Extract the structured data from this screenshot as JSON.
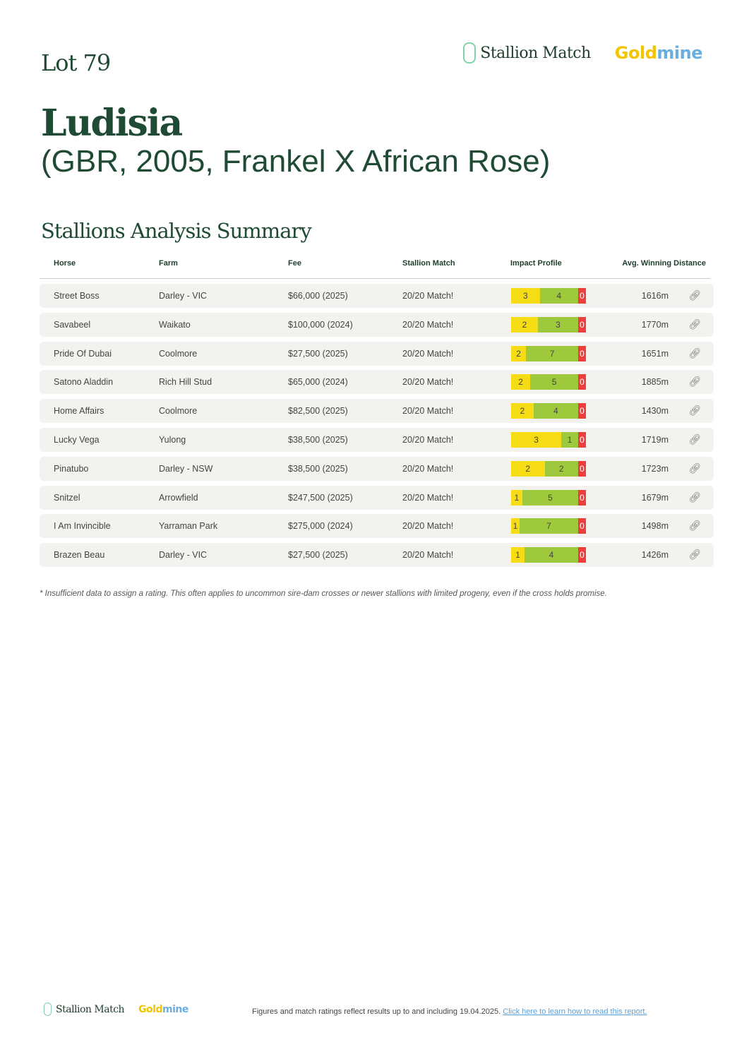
{
  "header": {
    "lot": "Lot 79",
    "logo_stallion": "Stallion Match",
    "logo_gold": "Gold",
    "logo_mine": "mine"
  },
  "horse": {
    "name": "Ludisia",
    "details": "(GBR, 2005, Frankel X African Rose)"
  },
  "section_title": "Stallions Analysis Summary",
  "columns": [
    "Horse",
    "Farm",
    "Fee",
    "Stallion Match",
    "Impact Profile",
    "Avg. Winning Distance"
  ],
  "colors": {
    "yellow": "#f5dc14",
    "green": "#9fc93c",
    "red": "#ee3d3d",
    "brand": "#1f4a33"
  },
  "rows": [
    {
      "horse": "Street Boss",
      "farm": "Darley - VIC",
      "fee": "$66,000 (2025)",
      "match": "20/20 Match!",
      "impact": [
        3,
        4,
        0
      ],
      "distance": "1616m"
    },
    {
      "horse": "Savabeel",
      "farm": "Waikato",
      "fee": "$100,000 (2024)",
      "match": "20/20 Match!",
      "impact": [
        2,
        3,
        0
      ],
      "distance": "1770m"
    },
    {
      "horse": "Pride Of Dubai",
      "farm": "Coolmore",
      "fee": "$27,500 (2025)",
      "match": "20/20 Match!",
      "impact": [
        2,
        7,
        0
      ],
      "distance": "1651m"
    },
    {
      "horse": "Satono Aladdin",
      "farm": "Rich Hill Stud",
      "fee": "$65,000 (2024)",
      "match": "20/20 Match!",
      "impact": [
        2,
        5,
        0
      ],
      "distance": "1885m"
    },
    {
      "horse": "Home Affairs",
      "farm": "Coolmore",
      "fee": "$82,500 (2025)",
      "match": "20/20 Match!",
      "impact": [
        2,
        4,
        0
      ],
      "distance": "1430m"
    },
    {
      "horse": "Lucky Vega",
      "farm": "Yulong",
      "fee": "$38,500 (2025)",
      "match": "20/20 Match!",
      "impact": [
        3,
        1,
        0
      ],
      "distance": "1719m"
    },
    {
      "horse": "Pinatubo",
      "farm": "Darley - NSW",
      "fee": "$38,500 (2025)",
      "match": "20/20 Match!",
      "impact": [
        2,
        2,
        0
      ],
      "distance": "1723m"
    },
    {
      "horse": "Snitzel",
      "farm": "Arrowfield",
      "fee": "$247,500 (2025)",
      "match": "20/20 Match!",
      "impact": [
        1,
        5,
        0
      ],
      "distance": "1679m"
    },
    {
      "horse": "I Am Invincible",
      "farm": "Yarraman Park",
      "fee": "$275,000 (2024)",
      "match": "20/20 Match!",
      "impact": [
        1,
        7,
        0
      ],
      "distance": "1498m"
    },
    {
      "horse": "Brazen Beau",
      "farm": "Darley - VIC",
      "fee": "$27,500 (2025)",
      "match": "20/20 Match!",
      "impact": [
        1,
        4,
        0
      ],
      "distance": "1426m"
    }
  ],
  "footnote": "* Insufficient data to assign a rating. This often applies to uncommon sire-dam crosses or newer stallions with limited progeny, even if the cross holds promise.",
  "footer": {
    "note": "Figures and match ratings reflect results up to and including 19.04.2025.",
    "link": "Click here to learn how to read this report."
  }
}
